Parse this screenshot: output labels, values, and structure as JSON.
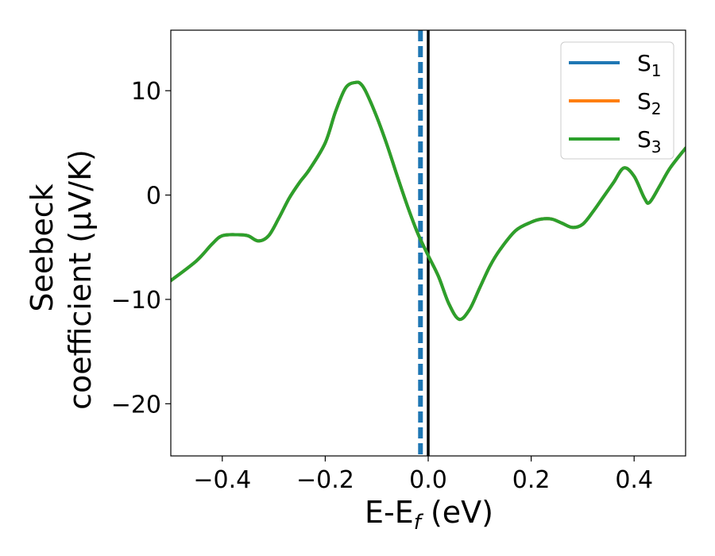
{
  "chart_data": {
    "type": "line",
    "xlabel": "E-E",
    "xlabel_sub": "f",
    "xlabel_unit": " (eV)",
    "ylabel_line1": "Seebeck",
    "ylabel_line2": "coefficient  (μV/K)",
    "xlim": [
      -0.5,
      0.5
    ],
    "ylim": [
      -25,
      15.8
    ],
    "xticks": [
      -0.4,
      -0.2,
      0.0,
      0.2,
      0.4
    ],
    "xtick_labels": [
      "−0.4",
      "−0.2",
      "0.0",
      "0.2",
      "0.4"
    ],
    "yticks": [
      -20,
      -10,
      0,
      10
    ],
    "ytick_labels": [
      "−20",
      "−10",
      "0",
      "10"
    ],
    "legend_position": "top-right",
    "vertical_lines": [
      {
        "x": -0.015,
        "style": "dashed",
        "color": "#1f77b4"
      },
      {
        "x": 0.0,
        "style": "solid",
        "color": "#000000"
      }
    ],
    "series": [
      {
        "name": "S",
        "sub": "1",
        "color": "#1f77b4",
        "x": [
          -0.5,
          -0.45,
          -0.42,
          -0.4,
          -0.37,
          -0.35,
          -0.33,
          -0.31,
          -0.29,
          -0.27,
          -0.25,
          -0.23,
          -0.2,
          -0.18,
          -0.16,
          -0.14,
          -0.13,
          -0.12,
          -0.1,
          -0.08,
          -0.06,
          -0.04,
          -0.02,
          0.0,
          0.02,
          0.04,
          0.06,
          0.08,
          0.1,
          0.12,
          0.14,
          0.17,
          0.2,
          0.22,
          0.24,
          0.26,
          0.28,
          0.3,
          0.32,
          0.34,
          0.36,
          0.38,
          0.4,
          0.42,
          0.43,
          0.45,
          0.47,
          0.5
        ],
        "y": [
          -8.2,
          -6.3,
          -4.7,
          -3.9,
          -3.8,
          -3.9,
          -4.4,
          -3.9,
          -2.2,
          -0.3,
          1.2,
          2.5,
          5.0,
          8.0,
          10.3,
          10.8,
          10.6,
          9.8,
          7.5,
          4.8,
          1.8,
          -1.1,
          -3.7,
          -5.8,
          -7.8,
          -10.4,
          -11.9,
          -11.0,
          -8.9,
          -6.8,
          -5.2,
          -3.4,
          -2.6,
          -2.3,
          -2.3,
          -2.7,
          -3.1,
          -2.8,
          -1.6,
          -0.2,
          1.2,
          2.6,
          1.8,
          -0.3,
          -0.7,
          0.9,
          2.6,
          4.5
        ]
      },
      {
        "name": "S",
        "sub": "2",
        "color": "#ff7f0e",
        "x": [
          -0.5,
          -0.45,
          -0.42,
          -0.4,
          -0.37,
          -0.35,
          -0.33,
          -0.31,
          -0.29,
          -0.27,
          -0.25,
          -0.23,
          -0.2,
          -0.18,
          -0.16,
          -0.14,
          -0.13,
          -0.12,
          -0.1,
          -0.08,
          -0.06,
          -0.04,
          -0.02,
          0.0,
          0.02,
          0.04,
          0.06,
          0.08,
          0.1,
          0.12,
          0.14,
          0.17,
          0.2,
          0.22,
          0.24,
          0.26,
          0.28,
          0.3,
          0.32,
          0.34,
          0.36,
          0.38,
          0.4,
          0.42,
          0.43,
          0.45,
          0.47,
          0.5
        ],
        "y": [
          -8.2,
          -6.3,
          -4.7,
          -3.9,
          -3.8,
          -3.9,
          -4.4,
          -3.9,
          -2.2,
          -0.3,
          1.2,
          2.5,
          5.0,
          8.0,
          10.3,
          10.8,
          10.6,
          9.8,
          7.5,
          4.8,
          1.8,
          -1.1,
          -3.7,
          -5.8,
          -7.8,
          -10.4,
          -11.9,
          -11.0,
          -8.9,
          -6.8,
          -5.2,
          -3.4,
          -2.6,
          -2.3,
          -2.3,
          -2.7,
          -3.1,
          -2.8,
          -1.6,
          -0.2,
          1.2,
          2.6,
          1.8,
          -0.3,
          -0.7,
          0.9,
          2.6,
          4.5
        ]
      },
      {
        "name": "S",
        "sub": "3",
        "color": "#2ca02c",
        "x": [
          -0.5,
          -0.45,
          -0.42,
          -0.4,
          -0.37,
          -0.35,
          -0.33,
          -0.31,
          -0.29,
          -0.27,
          -0.25,
          -0.23,
          -0.2,
          -0.18,
          -0.16,
          -0.14,
          -0.13,
          -0.12,
          -0.1,
          -0.08,
          -0.06,
          -0.04,
          -0.02,
          0.0,
          0.02,
          0.04,
          0.06,
          0.08,
          0.1,
          0.12,
          0.14,
          0.17,
          0.2,
          0.22,
          0.24,
          0.26,
          0.28,
          0.3,
          0.32,
          0.34,
          0.36,
          0.38,
          0.4,
          0.42,
          0.43,
          0.45,
          0.47,
          0.5
        ],
        "y": [
          -8.2,
          -6.3,
          -4.7,
          -3.9,
          -3.8,
          -3.9,
          -4.4,
          -3.9,
          -2.2,
          -0.3,
          1.2,
          2.5,
          5.0,
          8.0,
          10.3,
          10.8,
          10.6,
          9.8,
          7.5,
          4.8,
          1.8,
          -1.1,
          -3.7,
          -5.8,
          -7.8,
          -10.4,
          -11.9,
          -11.0,
          -8.9,
          -6.8,
          -5.2,
          -3.4,
          -2.6,
          -2.3,
          -2.3,
          -2.7,
          -3.1,
          -2.8,
          -1.6,
          -0.2,
          1.2,
          2.6,
          1.8,
          -0.3,
          -0.7,
          0.9,
          2.6,
          4.5
        ]
      }
    ]
  }
}
